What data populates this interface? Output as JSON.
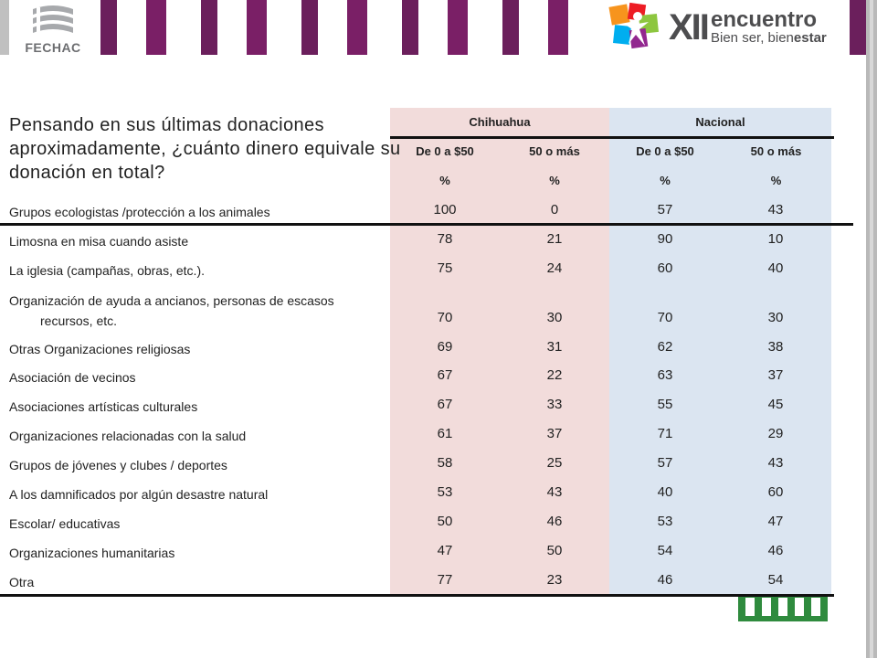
{
  "header": {
    "left_logo_text": "FECHAC",
    "right_logo": {
      "roman": "XII",
      "word": "encuentro",
      "tagline_light": "Bien ser, bien",
      "tagline_bold": "estar"
    },
    "stripe_colors": [
      "#6b1f5c",
      "#7a1f66",
      "#c0c0c0",
      "#6b1f5c"
    ]
  },
  "question": "Pensando en sus últimas donaciones aproximadamente, ¿cuánto dinero equivale su donación en total?",
  "table": {
    "group_headers": [
      "Chihuahua",
      "Nacional"
    ],
    "sub_headers": [
      "De 0 a $50",
      "50 o más",
      "De 0 a $50",
      "50 o más"
    ],
    "units": [
      "%",
      "%",
      "%",
      "%"
    ],
    "rows": [
      {
        "label": "Grupos ecologistas /protección a los animales",
        "values": [
          "100",
          "0",
          "57",
          "43"
        ]
      },
      {
        "label": "Limosna en misa cuando asiste",
        "values": [
          "78",
          "21",
          "90",
          "10"
        ]
      },
      {
        "label": "La iglesia  (campañas, obras, etc.).",
        "values": [
          "75",
          "24",
          "60",
          "40"
        ]
      },
      {
        "label": "Organización de ayuda a ancianos,  personas de escasos",
        "label_line2": "recursos, etc.",
        "values": [
          "70",
          "30",
          "70",
          "30"
        ]
      },
      {
        "label": "Otras Organizaciones religiosas",
        "values": [
          "69",
          "31",
          "62",
          "38"
        ]
      },
      {
        "label": "Asociación de vecinos",
        "values": [
          "67",
          "22",
          "63",
          "37"
        ]
      },
      {
        "label": "Asociaciones artísticas culturales",
        "values": [
          "67",
          "33",
          "55",
          "45"
        ]
      },
      {
        "label": "Organizaciones relacionadas con la salud",
        "values": [
          "61",
          "37",
          "71",
          "29"
        ]
      },
      {
        "label": "Grupos de jóvenes y clubes / deportes",
        "values": [
          "58",
          "25",
          "57",
          "43"
        ]
      },
      {
        "label": "A los damnificados por algún desastre natural",
        "values": [
          "53",
          "43",
          "40",
          "60"
        ]
      },
      {
        "label": "Escolar/ educativas",
        "values": [
          "50",
          "46",
          "53",
          "47"
        ]
      },
      {
        "label": "Organizaciones humanitarias",
        "values": [
          "47",
          "50",
          "54",
          "46"
        ]
      },
      {
        "label": "Otra",
        "values": [
          "77",
          "23",
          "46",
          "54"
        ]
      }
    ]
  },
  "colors": {
    "chihuahua_bg": "#f2dcdb",
    "nacional_bg": "#dbe5f1",
    "brand_purple": "#6b1f5c",
    "bottom_logo_green": "#2f8b3e"
  }
}
